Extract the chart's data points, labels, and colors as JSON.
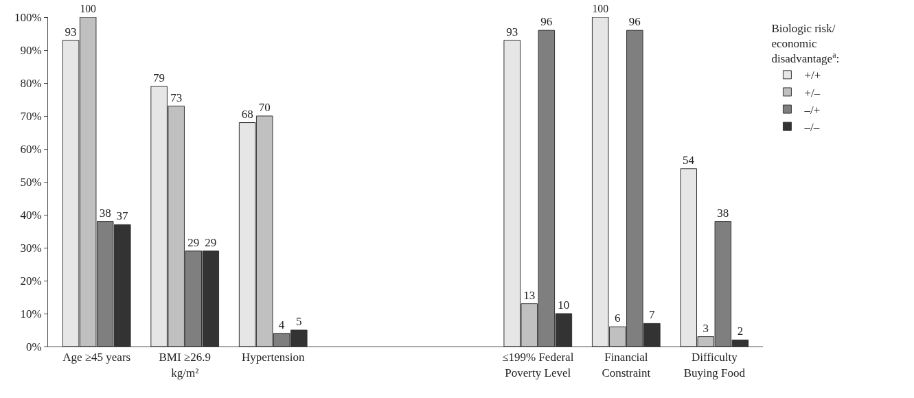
{
  "chart_data": {
    "type": "bar",
    "categories": [
      "Age ≥45 years",
      "BMI ≥26.9 kg/m²",
      "Hypertension",
      null,
      null,
      "≤199% Federal Poverty Level",
      "Financial Constraint",
      "Difficulty Buying Food"
    ],
    "series": [
      {
        "name": "+/+",
        "color": "#e6e6e6",
        "values": [
          93,
          79,
          68,
          null,
          null,
          93,
          100,
          54
        ]
      },
      {
        "name": "+/–",
        "color": "#c0c0c0",
        "values": [
          100,
          73,
          70,
          null,
          null,
          13,
          6,
          3
        ]
      },
      {
        "name": "–/+",
        "color": "#7f7f7f",
        "values": [
          38,
          29,
          4,
          null,
          null,
          96,
          96,
          38
        ]
      },
      {
        "name": "–/–",
        "color": "#333333",
        "values": [
          37,
          29,
          5,
          null,
          null,
          10,
          7,
          2
        ]
      }
    ],
    "legend_title": "Biologic risk/ economic disadvantage$^{a}$:",
    "legend": "top right",
    "data_labels": true,
    "grid": false,
    "ylim": [
      0,
      100
    ],
    "yticks": [
      {
        "value": 0,
        "label": "0%"
      },
      {
        "value": 10,
        "label": "10%"
      },
      {
        "value": 20,
        "label": "20%"
      },
      {
        "value": 30,
        "label": "30%"
      },
      {
        "value": 40,
        "label": "40%"
      },
      {
        "value": 50,
        "label": "50%"
      },
      {
        "value": 60,
        "label": "60%"
      },
      {
        "value": 70,
        "label": "70%"
      },
      {
        "value": 80,
        "label": "80%"
      },
      {
        "value": 90,
        "label": "90%"
      },
      {
        "value": 100,
        "label": "100%"
      }
    ]
  }
}
